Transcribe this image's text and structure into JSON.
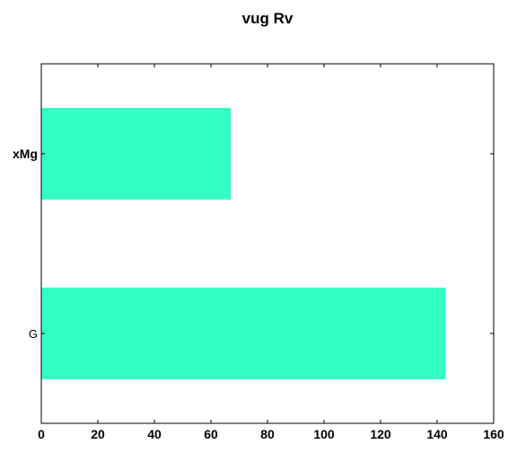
{
  "chart_data": {
    "type": "bar",
    "orientation": "horizontal",
    "title": "vug Rv",
    "xlabel": "",
    "ylabel": "",
    "categories": [
      "xMg",
      "G"
    ],
    "values": [
      67,
      143
    ],
    "xlim": [
      0,
      160
    ],
    "xticks": [
      0,
      20,
      40,
      60,
      80,
      100,
      120,
      140,
      160
    ],
    "grid": false,
    "bar_color": "#33FFC4"
  }
}
